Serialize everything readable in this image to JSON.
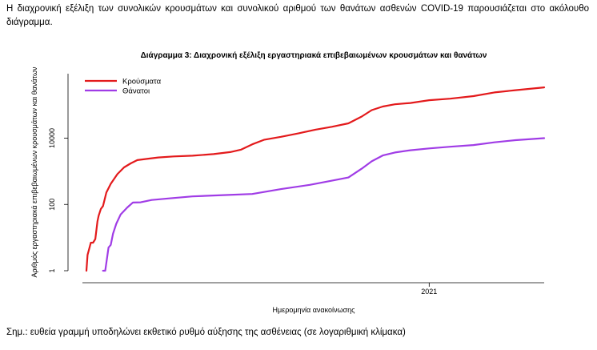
{
  "intro_text": "Η διαχρονική εξέλιξη των συνολικών κρουσμάτων και συνολικού αριθμού των θανάτων ασθενών COVID-19 παρουσιάζεται στο ακόλουθο διάγραμμα.",
  "note_text": "Σημ.: ευθεία γραμμή υποδηλώνει εκθετικό ρυθμό αύξησης της ασθένειας (σε λογαριθμική κλίμακα)",
  "colors": {
    "cases": "#e31a1c",
    "deaths": "#a03ce6"
  },
  "chart_data": {
    "type": "line",
    "title": "Διάγραμμα 3: Διαχρονική εξέλιξη εργαστηριακά επιβεβαιωμένων κρουσμάτων και θανάτων",
    "xlabel": "Ημερομηνία ανακοίνωσης",
    "ylabel": "Αριθμός εργαστηριακά επιβεβαιωμένων κρουσμάτων και θανάτων",
    "y_scale": "log",
    "y_ticks": [
      1,
      100,
      10000
    ],
    "y_tick_labels": [
      "1",
      "100",
      "10000"
    ],
    "xlim": [
      "2020-02-26",
      "2021-04-15"
    ],
    "x_ticks": [
      "2021-01-01"
    ],
    "x_tick_labels": [
      "2021"
    ],
    "legend": "top-left",
    "grid": false,
    "series": [
      {
        "name": "Κρούσματα",
        "color": "#e31a1c",
        "x": [
          "2020-02-26",
          "2020-02-27",
          "2020-02-28",
          "2020-03-01",
          "2020-03-03",
          "2020-03-05",
          "2020-03-07",
          "2020-03-08",
          "2020-03-10",
          "2020-03-12",
          "2020-03-15",
          "2020-03-19",
          "2020-03-25",
          "2020-03-31",
          "2020-04-06",
          "2020-04-12",
          "2020-04-22",
          "2020-05-01",
          "2020-05-15",
          "2020-06-01",
          "2020-06-20",
          "2020-07-05",
          "2020-07-15",
          "2020-07-25",
          "2020-08-05",
          "2020-08-20",
          "2020-09-05",
          "2020-09-20",
          "2020-10-05",
          "2020-10-20",
          "2020-11-01",
          "2020-11-10",
          "2020-11-20",
          "2020-12-01",
          "2020-12-15",
          "2021-01-01",
          "2021-01-20",
          "2021-02-10",
          "2021-03-01",
          "2021-03-20",
          "2021-04-15"
        ],
        "values": [
          1,
          3,
          4,
          7,
          7,
          9,
          31,
          45,
          73,
          89,
          228,
          418,
          821,
          1314,
          1735,
          2170,
          2401,
          2620,
          2810,
          2950,
          3300,
          3800,
          4500,
          6500,
          9000,
          11000,
          14000,
          18000,
          22000,
          28000,
          45000,
          70000,
          90000,
          105000,
          115000,
          140000,
          155000,
          185000,
          240000,
          280000,
          340000
        ]
      },
      {
        "name": "Θάνατοι",
        "color": "#a03ce6",
        "x": [
          "2020-03-12",
          "2020-03-14",
          "2020-03-16",
          "2020-03-17",
          "2020-03-19",
          "2020-03-21",
          "2020-03-24",
          "2020-03-28",
          "2020-04-03",
          "2020-04-08",
          "2020-04-15",
          "2020-04-25",
          "2020-05-10",
          "2020-06-01",
          "2020-07-01",
          "2020-07-25",
          "2020-08-20",
          "2020-09-15",
          "2020-10-05",
          "2020-10-20",
          "2020-11-01",
          "2020-11-10",
          "2020-11-20",
          "2020-12-01",
          "2020-12-15",
          "2021-01-01",
          "2021-01-20",
          "2021-02-10",
          "2021-03-01",
          "2021-03-20",
          "2021-04-15"
        ],
        "values": [
          1,
          1,
          3,
          5,
          6,
          13,
          26,
          50,
          81,
          114,
          116,
          136,
          151,
          175,
          192,
          207,
          290,
          390,
          520,
          650,
          1200,
          2000,
          3000,
          3700,
          4300,
          4900,
          5500,
          6200,
          7500,
          8700,
          10000
        ]
      }
    ]
  }
}
